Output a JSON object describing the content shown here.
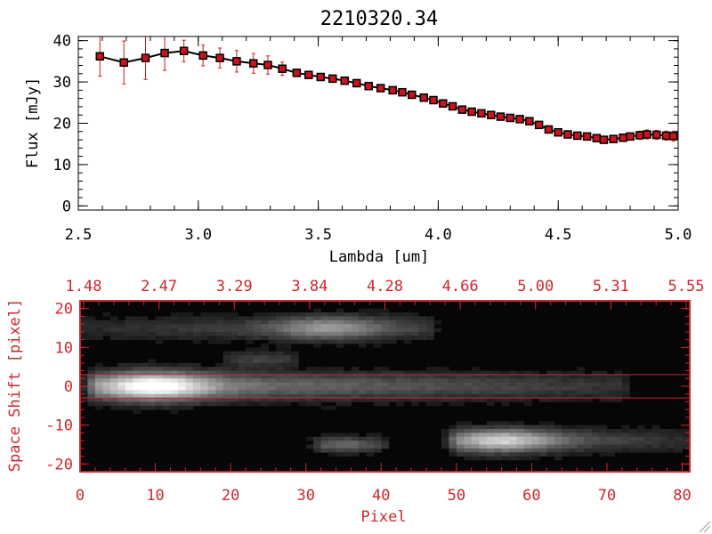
{
  "colors": {
    "axis_top": "#000000",
    "marker": "#c8141e",
    "errorbar": "#d01818",
    "line": "#000000",
    "axis_bottom": "#c8282d",
    "image_bg": "#060606"
  },
  "chart_data": [
    {
      "type": "scatter",
      "title": "2210320.34",
      "xlabel": "Lambda [um]",
      "ylabel": "Flux [mJy]",
      "xlim": [
        2.5,
        5.0
      ],
      "ylim": [
        -1,
        41
      ],
      "x_ticks": [
        "2.5",
        "3.0",
        "3.5",
        "4.0",
        "4.5",
        "5.0"
      ],
      "x_tick_values": [
        2.5,
        3.0,
        3.5,
        4.0,
        4.5,
        5.0
      ],
      "y_ticks": [
        "0",
        "10",
        "20",
        "30",
        "40"
      ],
      "y_tick_values": [
        0,
        10,
        20,
        30,
        40
      ],
      "series": [
        {
          "name": "flux",
          "x": [
            2.59,
            2.69,
            2.78,
            2.86,
            2.94,
            3.02,
            3.09,
            3.16,
            3.23,
            3.29,
            3.35,
            3.41,
            3.46,
            3.51,
            3.56,
            3.61,
            3.66,
            3.71,
            3.76,
            3.81,
            3.85,
            3.89,
            3.94,
            3.98,
            4.02,
            4.06,
            4.1,
            4.14,
            4.18,
            4.22,
            4.26,
            4.3,
            4.34,
            4.38,
            4.42,
            4.46,
            4.5,
            4.54,
            4.58,
            4.62,
            4.66,
            4.69,
            4.73,
            4.77,
            4.8,
            4.84,
            4.87,
            4.91,
            4.95,
            4.98
          ],
          "y": [
            36.2,
            34.7,
            35.8,
            37.0,
            37.5,
            36.4,
            35.8,
            35.0,
            34.5,
            34.1,
            33.2,
            32.2,
            31.7,
            31.2,
            30.8,
            30.3,
            29.7,
            29.0,
            28.5,
            28.0,
            27.5,
            26.9,
            26.2,
            25.6,
            24.8,
            24.1,
            23.3,
            22.8,
            22.4,
            22.0,
            21.6,
            21.3,
            21.0,
            20.5,
            19.6,
            18.5,
            17.8,
            17.3,
            17.0,
            16.8,
            16.4,
            16.0,
            16.2,
            16.5,
            16.8,
            17.1,
            17.3,
            17.2,
            17.0,
            16.9
          ],
          "err": [
            4.8,
            5.2,
            5.2,
            4.2,
            2.6,
            2.5,
            2.4,
            2.6,
            2.4,
            2.2,
            1.6,
            0.9,
            0.8,
            0.7,
            0.7,
            0.7,
            0.7,
            0.6,
            0.6,
            0.6,
            0.6,
            0.6,
            0.6,
            0.6,
            0.6,
            0.6,
            0.6,
            0.6,
            0.6,
            0.6,
            0.6,
            0.6,
            0.6,
            0.6,
            0.6,
            0.6,
            0.6,
            0.6,
            0.6,
            0.6,
            0.6,
            0.6,
            0.6,
            0.7,
            0.8,
            1.0,
            1.1,
            1.1,
            1.1,
            1.2
          ]
        }
      ]
    },
    {
      "type": "heatmap",
      "xlabel": "Pixel",
      "ylabel": "Space Shift [pixel]",
      "xlim": [
        0,
        81
      ],
      "ylim": [
        -22,
        22
      ],
      "x_ticks": [
        "0",
        "10",
        "20",
        "30",
        "40",
        "50",
        "60",
        "70",
        "80"
      ],
      "x_tick_values": [
        0,
        10,
        20,
        30,
        40,
        50,
        60,
        70,
        80
      ],
      "y_ticks": [
        "-20",
        "-10",
        "0",
        "10",
        "20"
      ],
      "y_tick_values": [
        -20,
        -10,
        0,
        10,
        20
      ],
      "top_axis_labels": [
        "1.48",
        "2.47",
        "3.29",
        "3.84",
        "4.28",
        "4.66",
        "5.00",
        "5.31",
        "5.55"
      ],
      "extraction_window": [
        -3,
        3
      ],
      "sources": [
        {
          "name": "main-trace",
          "center_y": 0,
          "x_start": 2,
          "x_end": 72,
          "peak_x": 10,
          "peak": 1.0,
          "width": 3.6
        },
        {
          "name": "upper-trace",
          "center_y": 15,
          "x_start": 0,
          "x_end": 46,
          "peak_x": 33,
          "peak": 0.55,
          "width": 3.0
        },
        {
          "name": "lower-left-blob",
          "center_y": -15,
          "x_start": 32,
          "x_end": 40,
          "peak_x": 35,
          "peak": 0.35,
          "width": 2.0
        },
        {
          "name": "lower-right-trace",
          "center_y": -14,
          "x_start": 50,
          "x_end": 81,
          "peak_x": 56,
          "peak": 0.75,
          "width": 3.0
        },
        {
          "name": "faint-arc",
          "center_y": 7,
          "x_start": 20,
          "x_end": 28,
          "peak_x": 24,
          "peak": 0.2,
          "width": 2.0
        }
      ]
    }
  ]
}
